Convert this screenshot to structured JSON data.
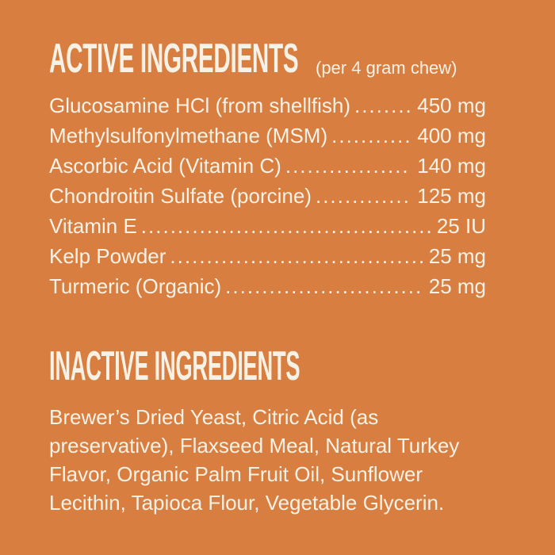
{
  "colors": {
    "background": "#D77E40",
    "text": "#F8F2E6"
  },
  "active_section": {
    "title": "ACTIVE INGREDIENTS",
    "subtitle": "(per 4 gram chew)",
    "ingredients": [
      {
        "name": "Glucosamine HCl (from shellfish)",
        "amount": "450 mg"
      },
      {
        "name": "Methylsulfonylmethane (MSM)",
        "amount": "400 mg"
      },
      {
        "name": "Ascorbic Acid (Vitamin C)",
        "amount": "140 mg"
      },
      {
        "name": "Chondroitin Sulfate (porcine)",
        "amount": "125 mg"
      },
      {
        "name": "Vitamin E",
        "amount": "25 IU"
      },
      {
        "name": "Kelp Powder",
        "amount": "25 mg"
      },
      {
        "name": "Turmeric (Organic)",
        "amount": "25 mg"
      }
    ]
  },
  "inactive_section": {
    "title": "INACTIVE INGREDIENTS",
    "lines": [
      "Brewer’s Dried Yeast, Citric Acid (as",
      "preservative), Flaxseed Meal, Natural Turkey",
      "Flavor, Organic Palm Fruit Oil, Sunflower",
      "Lecithin, Tapioca Flour, Vegetable Glycerin."
    ]
  }
}
